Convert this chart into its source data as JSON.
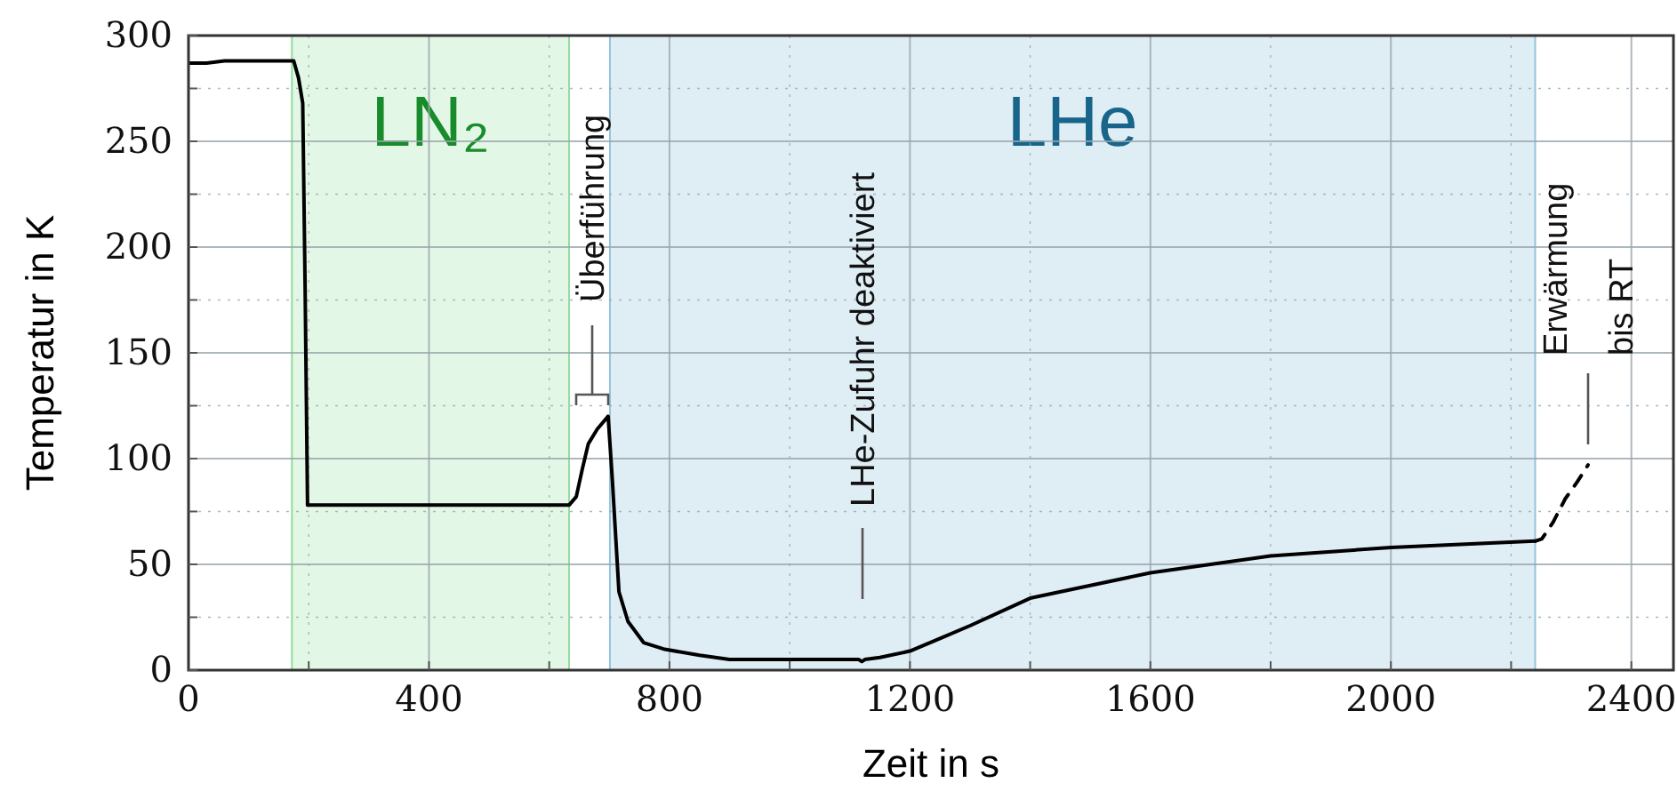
{
  "chart_data": {
    "type": "line",
    "xlabel": "Zeit in s",
    "ylabel": "Temperatur in K",
    "xlim": [
      0,
      2470
    ],
    "ylim": [
      0,
      300
    ],
    "xticks": [
      0,
      {
        "value": 200,
        "label": null
      },
      400,
      {
        "value": 600,
        "label": null
      },
      800,
      {
        "value": 1000,
        "label": null
      },
      1200,
      {
        "value": 1400,
        "label": null
      },
      1600,
      {
        "value": 1800,
        "label": null
      },
      2000,
      {
        "value": 2200,
        "label": null
      },
      2400
    ],
    "yticks": [
      0,
      {
        "value": 25,
        "label": null
      },
      50,
      {
        "value": 75,
        "label": null
      },
      100,
      {
        "value": 125,
        "label": null
      },
      150,
      {
        "value": 175,
        "label": null
      },
      200,
      {
        "value": 225,
        "label": null
      },
      250,
      {
        "value": 275,
        "label": null
      },
      300
    ],
    "grid": true,
    "series": [
      {
        "color": "#000000",
        "line_style": "solid",
        "x": [
          0,
          30,
          60,
          100,
          150,
          175,
          183,
          190,
          194,
          198,
          205,
          300,
          400,
          500,
          600,
          633,
          645,
          655,
          665,
          680,
          698,
          705,
          716,
          731,
          757,
          790,
          850,
          900,
          1000,
          1100,
          1115,
          1120,
          1125,
          1150,
          1200,
          1250,
          1300,
          1400,
          1500,
          1600,
          1800,
          2000,
          2240
        ],
        "values": [
          287,
          287,
          288,
          288,
          288,
          288,
          280,
          268,
          180,
          78,
          78,
          78,
          78,
          78,
          78,
          78,
          82,
          95,
          107,
          114,
          120,
          90,
          37,
          23,
          13,
          10,
          7,
          5,
          5,
          5,
          5,
          4,
          5,
          6,
          9,
          15,
          21,
          34,
          40,
          46,
          54,
          58,
          61
        ]
      },
      {
        "color": "#000000",
        "line_style": "dashed",
        "x": [
          2240,
          2251,
          2270,
          2290,
          2310,
          2328
        ],
        "values": [
          61,
          62,
          70,
          81,
          89,
          97
        ]
      }
    ],
    "bands": [
      {
        "axis": "x",
        "from": 172,
        "to": 633,
        "label": "LN₂",
        "color": "#e3f7e6"
      },
      {
        "axis": "x",
        "from": 701,
        "to": 2240,
        "label": "LHe",
        "color": "#dfedf4"
      }
    ],
    "annotations": [
      "Überführung",
      "LHe-Zufuhr deaktiviert",
      "Erwärmung\nbis RT"
    ]
  }
}
